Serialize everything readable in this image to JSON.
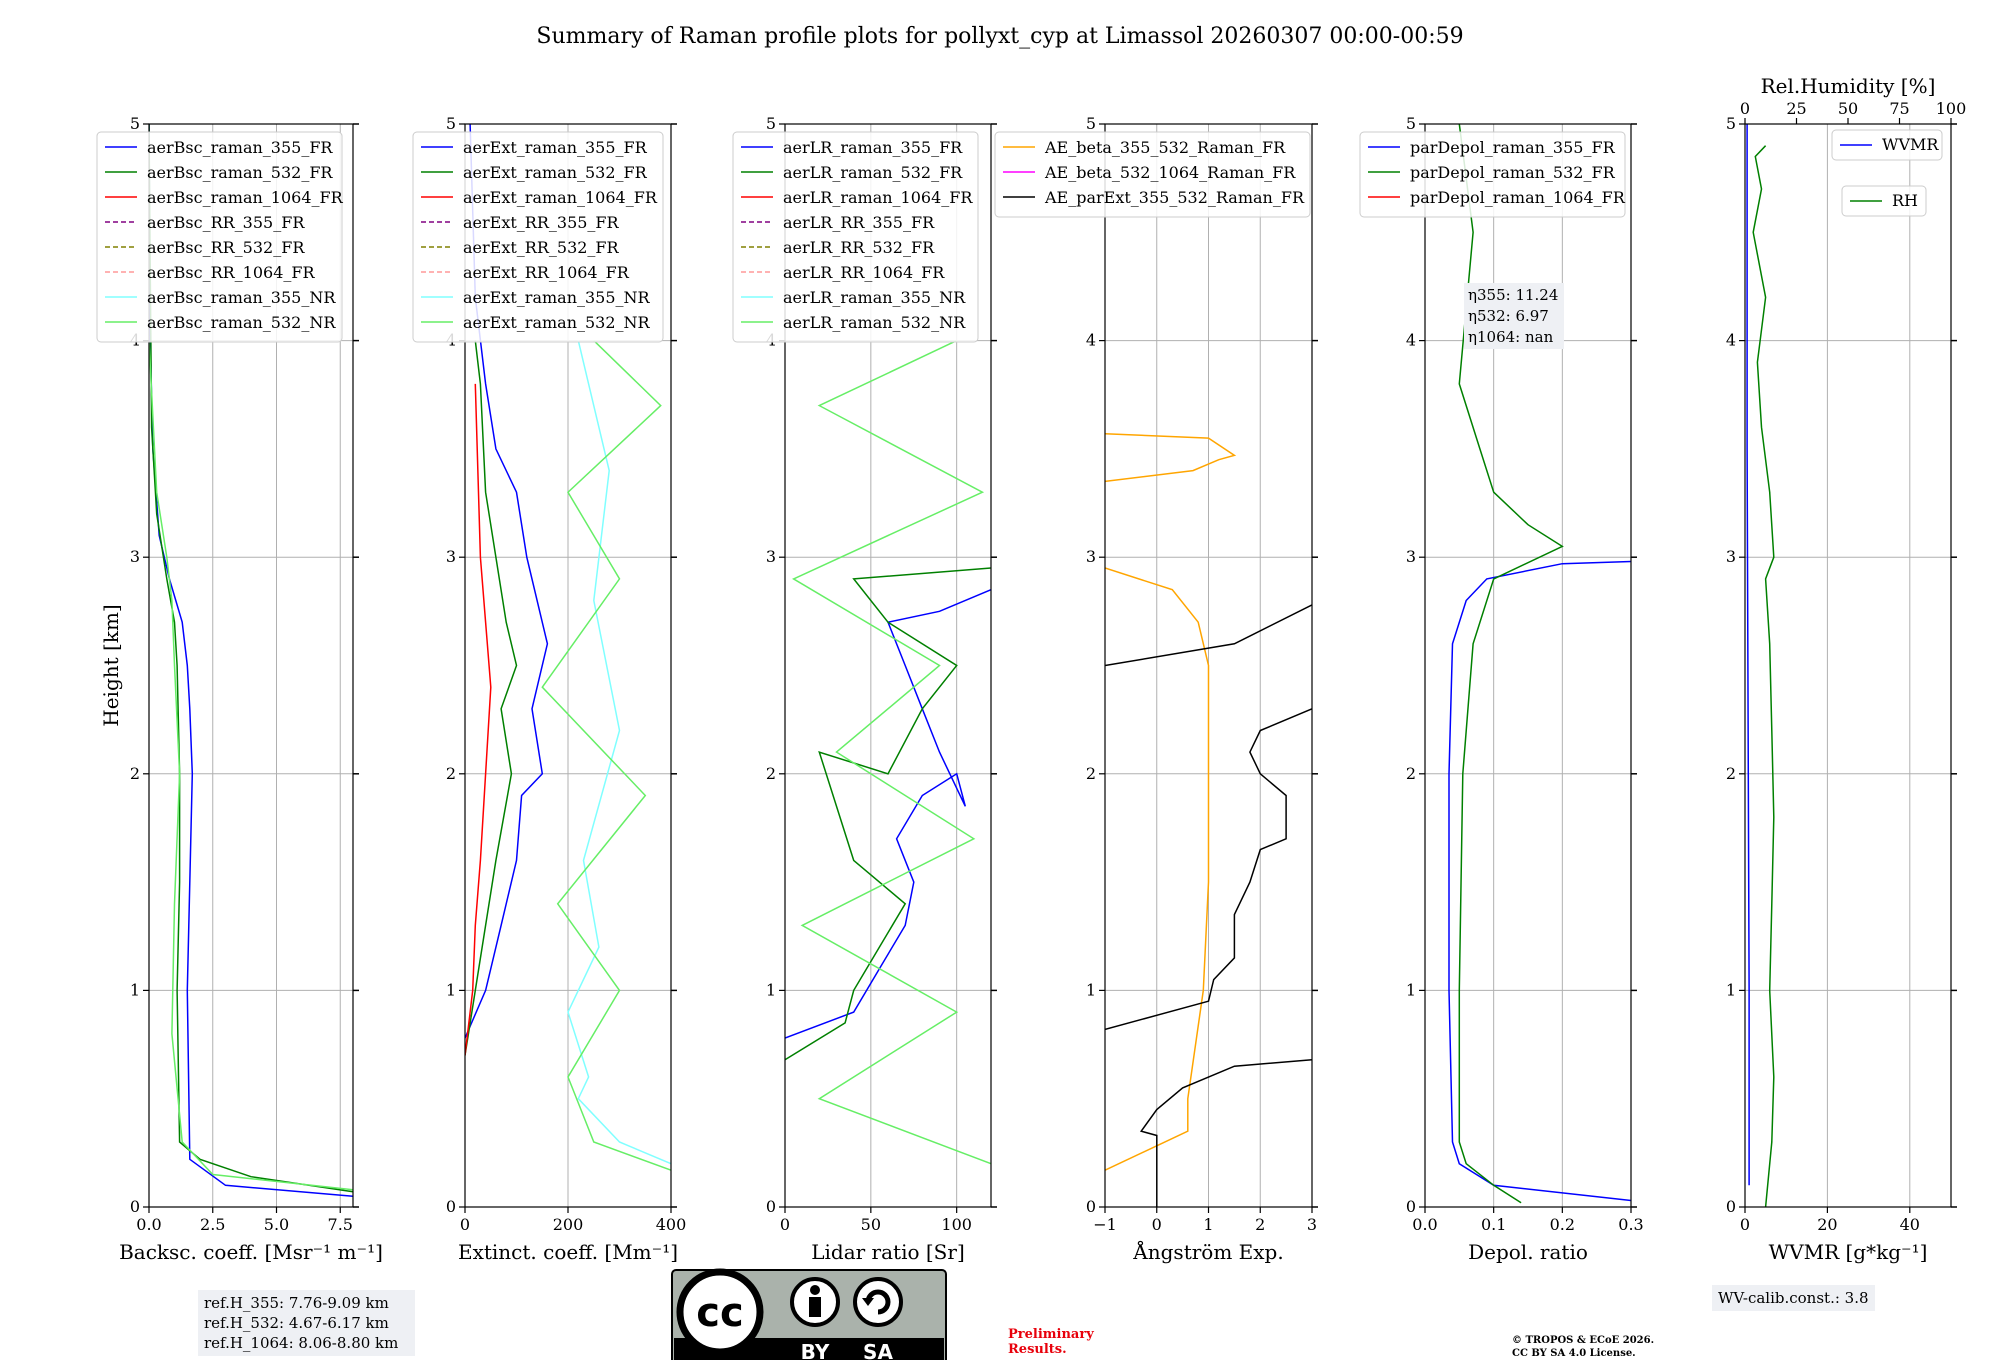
{
  "title": "Summary of Raman profile plots for pollyxt_cyp at Limassol 20260307 00:00-00:59",
  "colors": {
    "blue": "#0000ff",
    "green": "#008000",
    "red": "#ff0000",
    "purple": "#800080",
    "olive": "#808000",
    "salmon": "#ff9999",
    "cyan": "#80ffff",
    "lightgreen": "#66ee66",
    "orange": "#ffa500",
    "magenta": "#ff00ff",
    "black": "#000000"
  },
  "chart_data": [
    {
      "type": "line",
      "id": "backscatter",
      "xlabel": "Backsc. coeff. [Msr⁻¹ m⁻¹]",
      "ylabel": "Height [km]",
      "xlim": [
        0,
        8
      ],
      "ylim": [
        0,
        5
      ],
      "xticks": [
        "0.0",
        "2.5",
        "5.0",
        "7.5"
      ],
      "xtick_values": [
        0,
        2.5,
        5,
        7.5
      ],
      "yticks": [
        "0",
        "1",
        "2",
        "3",
        "4",
        "5"
      ],
      "legend": [
        {
          "label": "aerBsc_raman_355_FR",
          "color": "blue",
          "dash": false
        },
        {
          "label": "aerBsc_raman_532_FR",
          "color": "green",
          "dash": false
        },
        {
          "label": "aerBsc_raman_1064_FR",
          "color": "red",
          "dash": false
        },
        {
          "label": "aerBsc_RR_355_FR",
          "color": "purple",
          "dash": true
        },
        {
          "label": "aerBsc_RR_532_FR",
          "color": "olive",
          "dash": true
        },
        {
          "label": "aerBsc_RR_1064_FR",
          "color": "salmon",
          "dash": true
        },
        {
          "label": "aerBsc_raman_355_NR",
          "color": "cyan",
          "dash": false
        },
        {
          "label": "aerBsc_raman_532_NR",
          "color": "lightgreen",
          "dash": false
        }
      ],
      "series": [
        {
          "name": "aerBsc_raman_355_FR",
          "color": "blue",
          "x": [
            8.0,
            3.0,
            1.6,
            1.5,
            1.6,
            1.7,
            1.6,
            1.5,
            1.3,
            0.8,
            0.4,
            0.15,
            0.05,
            0.0
          ],
          "y": [
            0.05,
            0.1,
            0.22,
            1.0,
            1.5,
            2.0,
            2.3,
            2.5,
            2.7,
            2.9,
            3.1,
            3.5,
            4.0,
            5.0
          ]
        },
        {
          "name": "aerBsc_raman_532_FR",
          "color": "green",
          "x": [
            8.0,
            4.0,
            2.0,
            1.2,
            1.1,
            1.2,
            1.2,
            1.1,
            1.0,
            0.7,
            0.3,
            0.1,
            0.0
          ],
          "y": [
            0.07,
            0.14,
            0.22,
            0.3,
            1.0,
            1.5,
            2.0,
            2.5,
            2.7,
            2.9,
            3.2,
            3.6,
            5.0
          ]
        },
        {
          "name": "aerBsc_raman_532_NR",
          "color": "lightgreen",
          "x": [
            8.0,
            2.5,
            1.3,
            0.9,
            1.0,
            1.2,
            1.0,
            0.9,
            0.7,
            0.3,
            0.0
          ],
          "y": [
            0.08,
            0.15,
            0.3,
            0.8,
            1.4,
            2.0,
            2.5,
            2.8,
            3.0,
            3.3,
            4.0
          ]
        }
      ]
    },
    {
      "type": "line",
      "id": "extinction",
      "xlabel": "Extinct. coeff. [Mm⁻¹]",
      "xlim": [
        0,
        400
      ],
      "ylim": [
        0,
        5
      ],
      "xticks": [
        "0",
        "200",
        "400"
      ],
      "xtick_values": [
        0,
        200,
        400
      ],
      "yticks": [
        "0",
        "1",
        "2",
        "3",
        "4",
        "5"
      ],
      "legend": [
        {
          "label": "aerExt_raman_355_FR",
          "color": "blue",
          "dash": false
        },
        {
          "label": "aerExt_raman_532_FR",
          "color": "green",
          "dash": false
        },
        {
          "label": "aerExt_raman_1064_FR",
          "color": "red",
          "dash": false
        },
        {
          "label": "aerExt_RR_355_FR",
          "color": "purple",
          "dash": true
        },
        {
          "label": "aerExt_RR_532_FR",
          "color": "olive",
          "dash": true
        },
        {
          "label": "aerExt_RR_1064_FR",
          "color": "salmon",
          "dash": true
        },
        {
          "label": "aerExt_raman_355_NR",
          "color": "cyan",
          "dash": false
        },
        {
          "label": "aerExt_raman_532_NR",
          "color": "lightgreen",
          "dash": false
        }
      ],
      "series": [
        {
          "name": "aerExt_raman_355_FR",
          "color": "blue",
          "x": [
            0,
            40,
            70,
            100,
            110,
            150,
            130,
            160,
            120,
            100,
            60,
            40,
            20,
            10
          ],
          "y": [
            0.78,
            1.0,
            1.3,
            1.6,
            1.9,
            2.0,
            2.3,
            2.6,
            3.0,
            3.3,
            3.5,
            3.8,
            4.2,
            5.0
          ]
        },
        {
          "name": "aerExt_raman_532_FR",
          "color": "green",
          "x": [
            0,
            20,
            40,
            60,
            90,
            70,
            100,
            80,
            60,
            40,
            30,
            20
          ],
          "y": [
            0.7,
            1.0,
            1.3,
            1.6,
            2.0,
            2.3,
            2.5,
            2.7,
            3.0,
            3.3,
            3.8,
            4.0
          ]
        },
        {
          "name": "aerExt_raman_1064_FR",
          "color": "red",
          "x": [
            0,
            15,
            20,
            30,
            40,
            50,
            40,
            30,
            20
          ],
          "y": [
            0.7,
            1.0,
            1.3,
            1.6,
            2.0,
            2.4,
            2.7,
            3.0,
            3.8
          ]
        },
        {
          "name": "aerExt_raman_355_NR",
          "color": "cyan",
          "x": [
            400,
            300,
            220,
            240,
            200,
            260,
            230,
            300,
            250,
            280,
            220
          ],
          "y": [
            0.2,
            0.3,
            0.5,
            0.6,
            0.9,
            1.2,
            1.6,
            2.2,
            2.8,
            3.4,
            4.0
          ]
        },
        {
          "name": "aerExt_raman_532_NR",
          "color": "lightgreen",
          "x": [
            400,
            250,
            200,
            300,
            180,
            350,
            150,
            300,
            200,
            380,
            250
          ],
          "y": [
            0.17,
            0.3,
            0.6,
            1.0,
            1.4,
            1.9,
            2.4,
            2.9,
            3.3,
            3.7,
            4.0
          ]
        }
      ]
    },
    {
      "type": "line",
      "id": "lidar_ratio",
      "xlabel": "Lidar ratio [Sr]",
      "xlim": [
        0,
        120
      ],
      "ylim": [
        0,
        5
      ],
      "xticks": [
        "0",
        "50",
        "100"
      ],
      "xtick_values": [
        0,
        50,
        100
      ],
      "yticks": [
        "0",
        "1",
        "2",
        "3",
        "4",
        "5"
      ],
      "legend": [
        {
          "label": "aerLR_raman_355_FR",
          "color": "blue",
          "dash": false
        },
        {
          "label": "aerLR_raman_532_FR",
          "color": "green",
          "dash": false
        },
        {
          "label": "aerLR_raman_1064_FR",
          "color": "red",
          "dash": false
        },
        {
          "label": "aerLR_RR_355_FR",
          "color": "purple",
          "dash": true
        },
        {
          "label": "aerLR_RR_532_FR",
          "color": "olive",
          "dash": true
        },
        {
          "label": "aerLR_RR_1064_FR",
          "color": "salmon",
          "dash": true
        },
        {
          "label": "aerLR_raman_355_NR",
          "color": "cyan",
          "dash": false
        },
        {
          "label": "aerLR_raman_532_NR",
          "color": "lightgreen",
          "dash": false
        }
      ],
      "series": [
        {
          "name": "aerLR_raman_355_FR",
          "color": "blue",
          "x": [
            0,
            40,
            55,
            70,
            75,
            65,
            80,
            100,
            105,
            90,
            80,
            70,
            60,
            90,
            120
          ],
          "y": [
            0.78,
            0.9,
            1.1,
            1.3,
            1.5,
            1.7,
            1.9,
            2.0,
            1.85,
            2.1,
            2.3,
            2.5,
            2.7,
            2.75,
            2.85
          ]
        },
        {
          "name": "aerLR_raman_532_FR",
          "color": "green",
          "x": [
            0,
            35,
            40,
            55,
            70,
            40,
            20,
            60,
            80,
            100,
            60,
            40,
            120
          ],
          "y": [
            0.68,
            0.85,
            1.0,
            1.2,
            1.4,
            1.6,
            2.1,
            2.0,
            2.3,
            2.5,
            2.7,
            2.9,
            2.95
          ]
        },
        {
          "name": "aerLR_raman_532_NR",
          "color": "lightgreen",
          "x": [
            120,
            20,
            100,
            10,
            110,
            30,
            90,
            5,
            115,
            20,
            100
          ],
          "y": [
            0.2,
            0.5,
            0.9,
            1.3,
            1.7,
            2.1,
            2.5,
            2.9,
            3.3,
            3.7,
            4.0
          ]
        }
      ]
    },
    {
      "type": "line",
      "id": "angstrom",
      "xlabel": "Ångström Exp.",
      "xlim": [
        -1,
        3
      ],
      "ylim": [
        0,
        5
      ],
      "xticks": [
        "−1",
        "0",
        "1",
        "2",
        "3"
      ],
      "xtick_values": [
        -1,
        0,
        1,
        2,
        3
      ],
      "yticks": [
        "0",
        "1",
        "2",
        "3",
        "4",
        "5"
      ],
      "legend": [
        {
          "label": "AE_beta_355_532_Raman_FR",
          "color": "orange",
          "dash": false
        },
        {
          "label": "AE_beta_532_1064_Raman_FR",
          "color": "magenta",
          "dash": false
        },
        {
          "label": "AE_parExt_355_532_Raman_FR",
          "color": "black",
          "dash": false
        }
      ],
      "series": [
        {
          "name": "AE_beta_355_532_Raman_FR",
          "color": "orange",
          "x": [
            -1,
            0.6,
            0.6,
            0.9,
            1.0,
            1.0,
            1.0,
            0.8,
            0.3,
            -1
          ],
          "y": [
            0.17,
            0.35,
            0.5,
            1.0,
            1.5,
            2.0,
            2.5,
            2.7,
            2.85,
            2.95
          ]
        },
        {
          "name": "AE_beta_355_532_Raman_FR_upper",
          "color": "orange",
          "x": [
            -1,
            0.7,
            1.2,
            1.5,
            1.0,
            -1
          ],
          "y": [
            3.35,
            3.4,
            3.45,
            3.47,
            3.55,
            3.57
          ]
        },
        {
          "name": "AE_parExt_355_532_Raman_FR",
          "color": "black",
          "x": [
            0,
            0,
            -0.3,
            0.0,
            0.5,
            1.5,
            3.0
          ],
          "y": [
            0,
            0.33,
            0.35,
            0.45,
            0.55,
            0.65,
            0.68
          ]
        },
        {
          "name": "AE_parExt_355_532_Raman_FR_mid",
          "color": "black",
          "x": [
            -1,
            1.0,
            1.1,
            1.5,
            1.5,
            1.8,
            2.0,
            2.5,
            2.5,
            2.0,
            1.8,
            2.0,
            3.0
          ],
          "y": [
            0.82,
            0.95,
            1.05,
            1.15,
            1.35,
            1.5,
            1.65,
            1.7,
            1.9,
            2.0,
            2.1,
            2.2,
            2.3
          ]
        },
        {
          "name": "AE_parExt_355_532_Raman_FR_top",
          "color": "black",
          "x": [
            -1,
            1.5,
            3.0
          ],
          "y": [
            2.5,
            2.6,
            2.78
          ]
        }
      ]
    },
    {
      "type": "line",
      "id": "depol",
      "xlabel": "Depol. ratio",
      "xlim": [
        0,
        0.3
      ],
      "ylim": [
        0,
        5
      ],
      "xticks": [
        "0.0",
        "0.1",
        "0.2",
        "0.3"
      ],
      "xtick_values": [
        0,
        0.1,
        0.2,
        0.3
      ],
      "yticks": [
        "0",
        "1",
        "2",
        "3",
        "4",
        "5"
      ],
      "legend": [
        {
          "label": "parDepol_raman_355_FR",
          "color": "blue",
          "dash": false
        },
        {
          "label": "parDepol_raman_532_FR",
          "color": "green",
          "dash": false
        },
        {
          "label": "parDepol_raman_1064_FR",
          "color": "red",
          "dash": false
        }
      ],
      "annotation": [
        "η355: 11.24",
        "η532: 6.97",
        "η1064: nan"
      ],
      "series": [
        {
          "name": "parDepol_raman_355_FR",
          "color": "blue",
          "x": [
            0.3,
            0.1,
            0.05,
            0.04,
            0.035,
            0.035,
            0.04,
            0.06,
            0.09,
            0.2,
            0.3
          ],
          "y": [
            0.03,
            0.1,
            0.2,
            0.3,
            1.0,
            2.0,
            2.6,
            2.8,
            2.9,
            2.97,
            2.98
          ]
        },
        {
          "name": "parDepol_raman_532_FR",
          "color": "green",
          "x": [
            0.14,
            0.1,
            0.06,
            0.05,
            0.05,
            0.055,
            0.07,
            0.1,
            0.2,
            0.15,
            0.1,
            0.08,
            0.05,
            0.07,
            0.05
          ],
          "y": [
            0.02,
            0.1,
            0.2,
            0.3,
            1.0,
            2.0,
            2.6,
            2.9,
            3.05,
            3.15,
            3.3,
            3.5,
            3.8,
            4.5,
            5.0
          ]
        }
      ]
    },
    {
      "type": "line",
      "id": "humidity",
      "xlabel": "WVMR [g*kg⁻¹]",
      "top_xlabel": "Rel.Humidity [%]",
      "xlim": [
        0,
        50
      ],
      "ylim": [
        0,
        5
      ],
      "xticks": [
        "0",
        "20",
        "40"
      ],
      "xtick_values": [
        0,
        20,
        40
      ],
      "top_xticks": [
        "0",
        "25",
        "50",
        "75",
        "100"
      ],
      "top_xtick_values": [
        0,
        25,
        50,
        75,
        100
      ],
      "yticks": [
        "0",
        "1",
        "2",
        "3",
        "4",
        "5"
      ],
      "legend": [
        {
          "label": "WVMR",
          "color": "blue",
          "dash": false
        },
        {
          "label": "RH",
          "color": "green",
          "dash": false
        }
      ],
      "series": [
        {
          "name": "WVMR",
          "color": "blue",
          "x": [
            1.0,
            1.0,
            0.8,
            0.7,
            0.6,
            0.5,
            0.5,
            0.5
          ],
          "y": [
            0.1,
            1.0,
            2.0,
            2.5,
            3.0,
            3.5,
            4.0,
            5.0
          ]
        },
        {
          "name": "RH",
          "color": "green",
          "x_rh": [
            10,
            13,
            14,
            12,
            13,
            14,
            13,
            12,
            10,
            14,
            12,
            8,
            6,
            10,
            4,
            8,
            5,
            10
          ],
          "y": [
            0.0,
            0.3,
            0.6,
            1.0,
            1.4,
            1.8,
            2.2,
            2.6,
            2.9,
            3.0,
            3.3,
            3.6,
            3.9,
            4.2,
            4.5,
            4.7,
            4.85,
            4.9
          ]
        }
      ]
    }
  ],
  "info": {
    "refh_355": "ref.H_355: 7.76-9.09 km",
    "refh_532": "ref.H_532: 4.67-6.17 km",
    "refh_1064": "ref.H_1064: 8.06-8.80 km",
    "wv_calib": "WV-calib.const.: 3.8",
    "prelim_1": "Preliminary",
    "prelim_2": "Results.",
    "copyright_1": "© TROPOS & ECoE 2026.",
    "copyright_2": "CC BY SA 4.0 License."
  },
  "license_badge": {
    "cc": "cc",
    "by": "BY",
    "sa": "SA"
  }
}
